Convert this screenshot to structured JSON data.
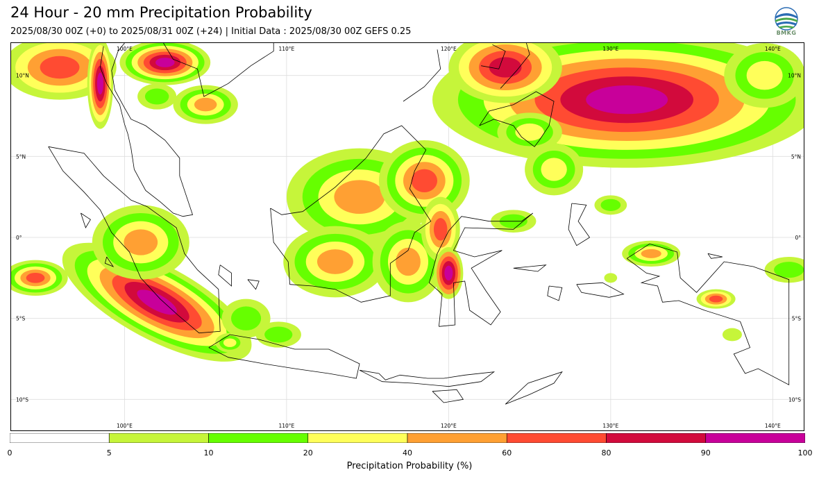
{
  "header": {
    "title": "24 Hour - 20 mm Precipitation Probability",
    "subtitle": "2025/08/30 00Z (+0) to 2025/08/31 00Z (+24) | Initial Data : 2025/08/30 00Z GEFS 0.25"
  },
  "logo": {
    "text": "BMKG"
  },
  "map": {
    "extent_lon": [
      93,
      142
    ],
    "extent_lat": [
      -12,
      12
    ],
    "lon_labels": [
      "100°E",
      "110°E",
      "120°E",
      "130°E",
      "140°E"
    ],
    "lat_labels": [
      "10°N",
      "5°N",
      "0°",
      "5°S",
      "10°S"
    ],
    "grid": true
  },
  "colorbar": {
    "label": "Precipitation Probability (%)",
    "ticks": [
      "0",
      "5",
      "10",
      "20",
      "40",
      "60",
      "80",
      "90",
      "100"
    ],
    "colors": [
      "#ffffff",
      "#c6f53a",
      "#66ff00",
      "#ffff5a",
      "#ffa033",
      "#ff4b32",
      "#d20a3c",
      "#c8009a"
    ]
  },
  "palette": {
    "p5": "#c6f53a",
    "p10": "#66ff00",
    "p20": "#ffff5a",
    "p40": "#ffa033",
    "p60": "#ff4b32",
    "p80": "#d20a3c",
    "p90": "#c8009a"
  }
}
